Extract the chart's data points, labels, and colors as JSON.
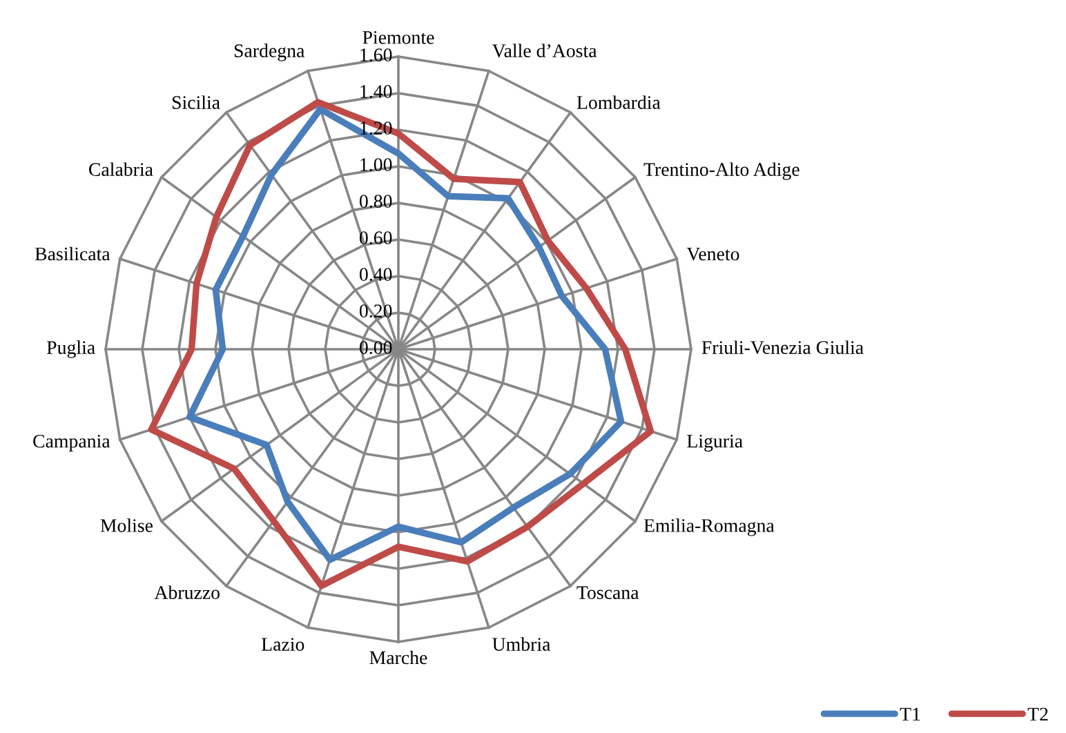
{
  "chart_data": {
    "type": "radar",
    "categories": [
      "Piemonte",
      "Valle d’Aosta",
      "Lombardia",
      "Trentino-Alto Adige",
      "Veneto",
      "Friuli-Venezia Giulia",
      "Liguria",
      "Emilia-Romagna",
      "Toscana",
      "Umbria",
      "Marche",
      "Lazio",
      "Abruzzo",
      "Molise",
      "Campania",
      "Puglia",
      "Basilicata",
      "Calabria",
      "Sicilia",
      "Sardegna"
    ],
    "series": [
      {
        "name": "T1",
        "color": "#4a7ebb",
        "values": [
          1.07,
          0.88,
          1.02,
          0.95,
          0.94,
          1.13,
          1.28,
          1.16,
          1.07,
          1.11,
          0.97,
          1.21,
          1.03,
          0.89,
          1.2,
          0.96,
          1.05,
          1.05,
          1.18,
          1.38
        ]
      },
      {
        "name": "T2",
        "color": "#be4b48",
        "values": [
          1.18,
          0.98,
          1.13,
          1.01,
          1.08,
          1.24,
          1.45,
          1.25,
          1.2,
          1.22,
          1.08,
          1.36,
          1.16,
          1.11,
          1.42,
          1.13,
          1.16,
          1.23,
          1.38,
          1.42
        ]
      }
    ],
    "ylim": [
      0,
      1.6
    ],
    "yticks": [
      {
        "value": 0,
        "label": "0.00"
      },
      {
        "value": 0.2,
        "label": "0.20"
      },
      {
        "value": 0.4,
        "label": "0.40"
      },
      {
        "value": 0.6,
        "label": "0.60"
      },
      {
        "value": 0.8,
        "label": "0.80"
      },
      {
        "value": 1.0,
        "label": "1.00"
      },
      {
        "value": 1.2,
        "label": "1.20"
      },
      {
        "value": 1.4,
        "label": "1.40"
      },
      {
        "value": 1.6,
        "label": "1.60"
      }
    ],
    "grid": true,
    "legend": "bottom right"
  }
}
